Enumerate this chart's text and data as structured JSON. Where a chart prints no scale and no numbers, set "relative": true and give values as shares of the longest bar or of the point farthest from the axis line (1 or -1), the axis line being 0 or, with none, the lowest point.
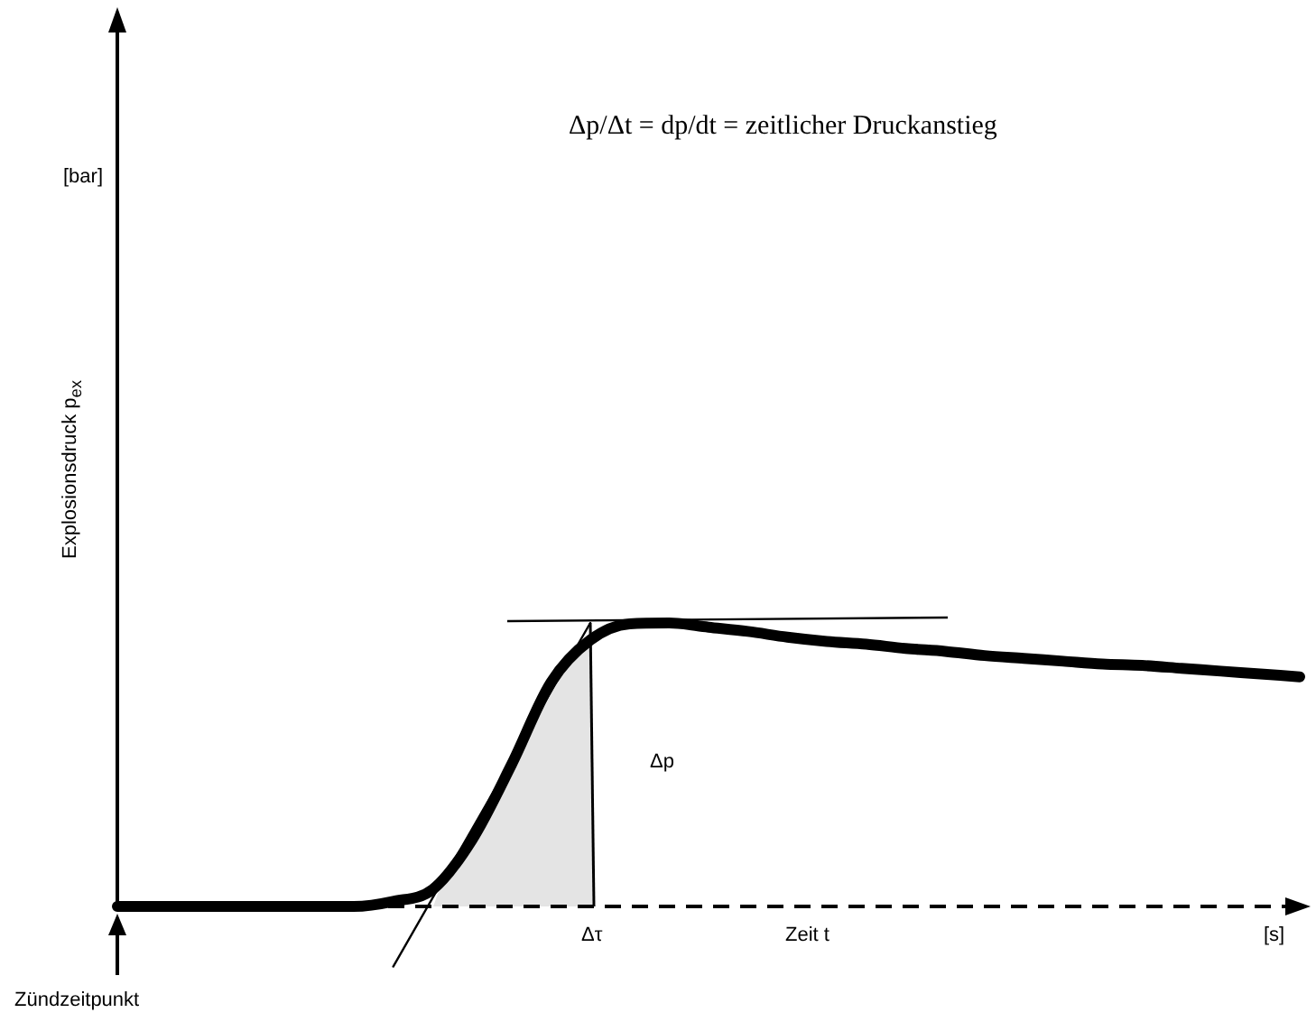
{
  "chart_data": {
    "type": "line",
    "relative": true,
    "title": "Δp/Δt = dp/dt = zeitlicher Druckanstieg",
    "ylabel": "Explosionsdruck p$_{ex}$",
    "xlabel": "Zeit t",
    "annotations": [
      "[bar]",
      "[s]",
      "Δτ",
      "Δp",
      "Zündzeitpunkt"
    ],
    "categories": [
      null,
      null,
      null,
      null,
      null,
      null,
      null,
      null,
      null,
      null,
      null,
      null,
      null,
      null,
      null,
      null,
      null,
      null,
      null,
      null,
      null,
      null,
      null,
      null,
      null,
      null,
      null,
      null,
      null,
      null,
      null
    ],
    "series": [
      {
        "color": "#000000",
        "values": [
          0,
          0,
          0,
          0,
          0,
          0,
          0,
          0.018,
          0.06,
          0.235,
          0.5,
          0.79,
          0.94,
          0.997,
          1,
          0.985,
          0.97,
          0.95,
          0.935,
          0.925,
          0.91,
          0.9,
          0.885,
          0.875,
          0.865,
          0.855,
          0.85,
          0.84,
          0.83,
          0.82,
          0.81
        ]
      },
      {
        "color": "#000000",
        "values": [
          null,
          null,
          null,
          null,
          null,
          null,
          null,
          -0.212,
          null,
          null,
          null,
          null,
          1.0,
          null,
          null,
          null,
          null,
          null,
          null,
          null,
          null,
          null,
          null,
          null,
          null,
          null,
          null,
          null,
          null,
          null,
          null
        ]
      }
    ],
    "ref_lines": [
      {
        "axis": "y",
        "value": 0,
        "color": "#000000",
        "line_style": "dashed"
      }
    ],
    "legend": false,
    "marker": "none",
    "line_style": "solid"
  }
}
